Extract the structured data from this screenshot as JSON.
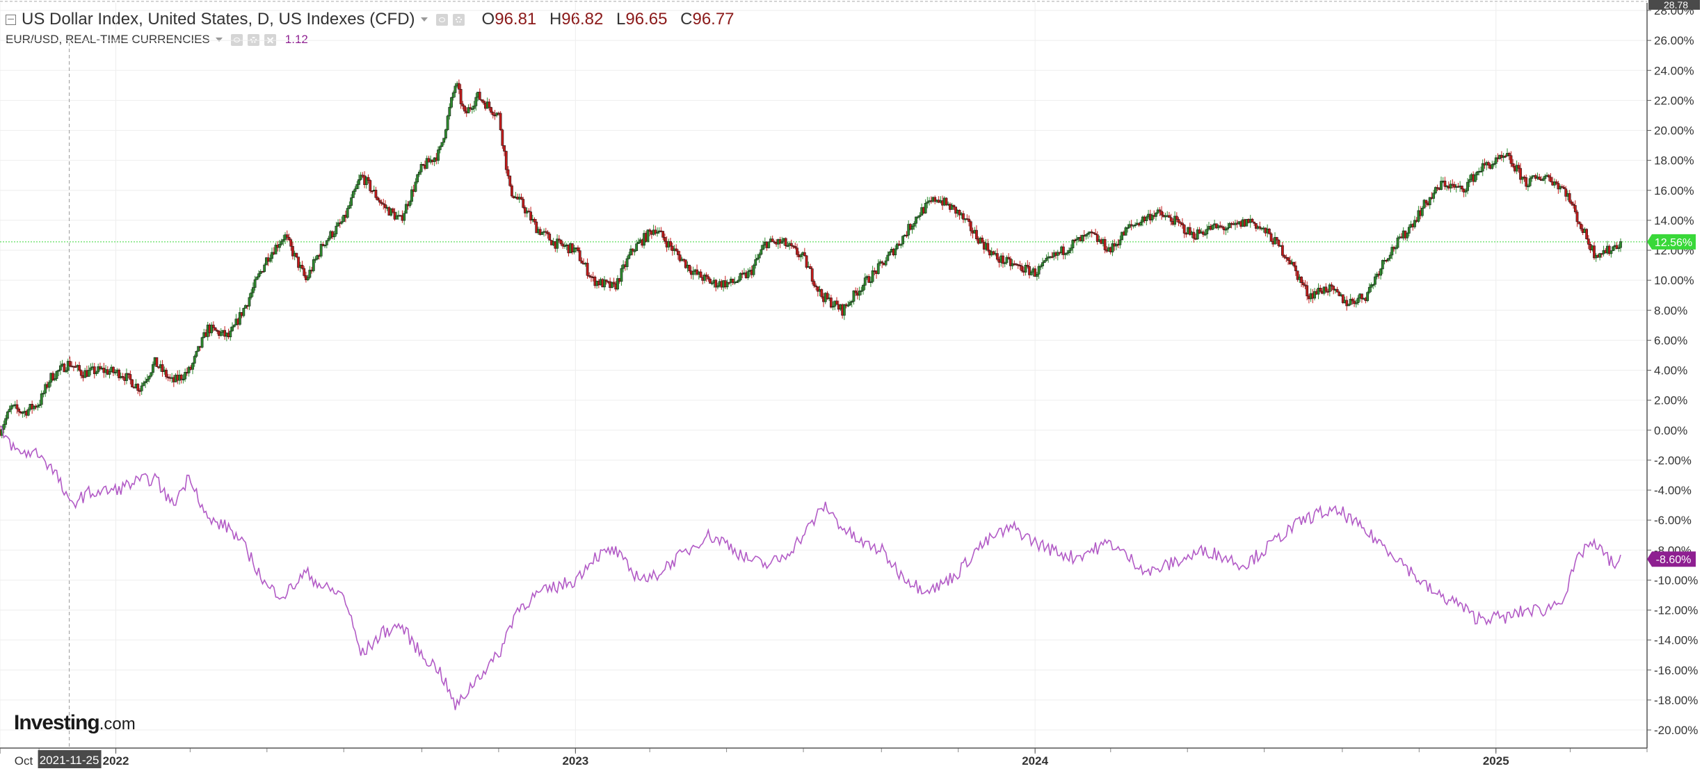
{
  "legend": {
    "main_title": "US Dollar Index, United States, D, US Indexes (CFD)",
    "open_label": "O",
    "open": "96.81",
    "high_label": "H",
    "high": "96.82",
    "low_label": "L",
    "low": "96.65",
    "close_label": "C",
    "close": "96.77",
    "compare_title": "EUR/USD, REAL-TIME CURRENCIES",
    "compare_value": "1.12"
  },
  "logo": {
    "brand": "Investing",
    "suffix": ".com"
  },
  "colors": {
    "up_candle": "#2e8b2e",
    "down_candle": "#c41a1a",
    "compare_line": "#b25bc6",
    "last_price_line": "#39d839",
    "eurusd_badge": "#8e1f91",
    "grid": "#eeeeee"
  },
  "chart_data": {
    "type": "line",
    "x_start": "2021-10-01",
    "x_end": "2025-05-01",
    "ylim": [
      -21,
      29
    ],
    "y_ticks": [
      -20,
      -18,
      -16,
      -14,
      -12,
      -10,
      -8,
      -6,
      -4,
      -2,
      0,
      2,
      4,
      6,
      8,
      10,
      12,
      14,
      16,
      18,
      20,
      22,
      24,
      26,
      28
    ],
    "y_tick_labels": [
      "-20.00%",
      "-18.00%",
      "-16.00%",
      "-14.00%",
      "-12.00%",
      "-10.00%",
      "-8.00%",
      "-6.00%",
      "-4.00%",
      "-2.00%",
      "0.00%",
      "2.00%",
      "4.00%",
      "6.00%",
      "8.00%",
      "10.00%",
      "12.00%",
      "14.00%",
      "16.00%",
      "18.00%",
      "20.00%",
      "22.00%",
      "24.00%",
      "26.00%",
      "28.00%"
    ],
    "top_value_label": "28.78",
    "x_tick_labels": [
      {
        "date": "2021-10-01",
        "label": "Oct"
      },
      {
        "date": "2022-01-01",
        "label": "2022"
      },
      {
        "date": "2023-01-01",
        "label": "2023"
      },
      {
        "date": "2024-01-01",
        "label": "2024"
      },
      {
        "date": "2025-01-01",
        "label": "2025"
      }
    ],
    "crosshair_date": "2021-11-25",
    "crosshair_label": "2021-11-25",
    "series": [
      {
        "name": "US Dollar Index",
        "style": "candlestick",
        "last_value": 12.56,
        "last_label": "12.56%",
        "points": [
          [
            "2021-10-01",
            0
          ],
          [
            "2021-10-10",
            1.5
          ],
          [
            "2021-10-20",
            1.2
          ],
          [
            "2021-11-01",
            1.8
          ],
          [
            "2021-11-10",
            3.5
          ],
          [
            "2021-11-25",
            4.5
          ],
          [
            "2021-12-05",
            3.8
          ],
          [
            "2021-12-20",
            4.0
          ],
          [
            "2022-01-05",
            3.8
          ],
          [
            "2022-01-20",
            2.8
          ],
          [
            "2022-02-01",
            4.5
          ],
          [
            "2022-02-15",
            3.2
          ],
          [
            "2022-03-01",
            4.0
          ],
          [
            "2022-03-15",
            6.8
          ],
          [
            "2022-04-01",
            6.2
          ],
          [
            "2022-04-15",
            8.5
          ],
          [
            "2022-05-01",
            11.5
          ],
          [
            "2022-05-15",
            13.0
          ],
          [
            "2022-06-01",
            10.0
          ],
          [
            "2022-06-15",
            12.5
          ],
          [
            "2022-07-01",
            14.0
          ],
          [
            "2022-07-15",
            17.0
          ],
          [
            "2022-08-01",
            15.0
          ],
          [
            "2022-08-15",
            14.0
          ],
          [
            "2022-09-01",
            17.5
          ],
          [
            "2022-09-15",
            18.5
          ],
          [
            "2022-09-28",
            23.2
          ],
          [
            "2022-10-05",
            21.0
          ],
          [
            "2022-10-15",
            22.3
          ],
          [
            "2022-11-01",
            21.0
          ],
          [
            "2022-11-10",
            16.0
          ],
          [
            "2022-11-20",
            15.0
          ],
          [
            "2022-12-01",
            13.5
          ],
          [
            "2022-12-15",
            12.5
          ],
          [
            "2023-01-01",
            12.0
          ],
          [
            "2023-01-15",
            10.0
          ],
          [
            "2023-02-01",
            9.5
          ],
          [
            "2023-02-15",
            12.0
          ],
          [
            "2023-03-05",
            13.5
          ],
          [
            "2023-03-20",
            12.0
          ],
          [
            "2023-04-05",
            10.5
          ],
          [
            "2023-04-20",
            9.8
          ],
          [
            "2023-05-05",
            9.8
          ],
          [
            "2023-05-20",
            10.5
          ],
          [
            "2023-06-01",
            12.5
          ],
          [
            "2023-06-15",
            12.5
          ],
          [
            "2023-07-01",
            11.5
          ],
          [
            "2023-07-15",
            9.0
          ],
          [
            "2023-08-01",
            8.0
          ],
          [
            "2023-08-15",
            9.5
          ],
          [
            "2023-09-01",
            11.0
          ],
          [
            "2023-09-15",
            12.5
          ],
          [
            "2023-10-01",
            14.5
          ],
          [
            "2023-10-15",
            15.5
          ],
          [
            "2023-11-01",
            14.5
          ],
          [
            "2023-11-15",
            13.0
          ],
          [
            "2023-12-01",
            11.5
          ],
          [
            "2023-12-15",
            11.0
          ],
          [
            "2024-01-01",
            10.5
          ],
          [
            "2024-01-15",
            11.5
          ],
          [
            "2024-02-01",
            12.5
          ],
          [
            "2024-02-15",
            13.0
          ],
          [
            "2024-03-01",
            12.0
          ],
          [
            "2024-03-15",
            13.5
          ],
          [
            "2024-04-05",
            14.5
          ],
          [
            "2024-04-20",
            14.0
          ],
          [
            "2024-05-05",
            13.0
          ],
          [
            "2024-05-20",
            13.5
          ],
          [
            "2024-06-05",
            13.5
          ],
          [
            "2024-06-20",
            14.0
          ],
          [
            "2024-07-05",
            13.0
          ],
          [
            "2024-07-20",
            11.5
          ],
          [
            "2024-08-05",
            9.0
          ],
          [
            "2024-08-20",
            9.5
          ],
          [
            "2024-09-05",
            8.5
          ],
          [
            "2024-09-20",
            9.0
          ],
          [
            "2024-10-05",
            11.5
          ],
          [
            "2024-10-20",
            13.0
          ],
          [
            "2024-11-05",
            15.0
          ],
          [
            "2024-11-20",
            16.5
          ],
          [
            "2024-12-05",
            16.0
          ],
          [
            "2024-12-20",
            17.5
          ],
          [
            "2025-01-10",
            18.2
          ],
          [
            "2025-01-25",
            16.5
          ],
          [
            "2025-02-10",
            17.0
          ],
          [
            "2025-02-25",
            16.0
          ],
          [
            "2025-03-10",
            13.5
          ],
          [
            "2025-03-20",
            11.8
          ],
          [
            "2025-04-01",
            12.0
          ],
          [
            "2025-04-10",
            12.56
          ]
        ]
      },
      {
        "name": "EUR/USD",
        "style": "line",
        "last_value": -8.6,
        "last_label": "-8.60%",
        "points": [
          [
            "2021-10-01",
            0
          ],
          [
            "2021-10-15",
            -1.5
          ],
          [
            "2021-11-01",
            -1.5
          ],
          [
            "2021-11-15",
            -3.0
          ],
          [
            "2021-11-25",
            -5.0
          ],
          [
            "2021-12-10",
            -4.2
          ],
          [
            "2022-01-01",
            -4.0
          ],
          [
            "2022-01-15",
            -3.5
          ],
          [
            "2022-02-01",
            -3.2
          ],
          [
            "2022-02-15",
            -5.0
          ],
          [
            "2022-03-01",
            -3.0
          ],
          [
            "2022-03-15",
            -6.0
          ],
          [
            "2022-04-01",
            -6.5
          ],
          [
            "2022-04-15",
            -8.0
          ],
          [
            "2022-05-01",
            -10.5
          ],
          [
            "2022-05-15",
            -11.0
          ],
          [
            "2022-06-01",
            -9.5
          ],
          [
            "2022-06-15",
            -10.5
          ],
          [
            "2022-07-01",
            -11.0
          ],
          [
            "2022-07-15",
            -15.0
          ],
          [
            "2022-08-01",
            -13.5
          ],
          [
            "2022-08-15",
            -13.0
          ],
          [
            "2022-09-01",
            -15.0
          ],
          [
            "2022-09-15",
            -16.0
          ],
          [
            "2022-09-28",
            -18.5
          ],
          [
            "2022-10-15",
            -16.5
          ],
          [
            "2022-11-01",
            -15.0
          ],
          [
            "2022-11-15",
            -12.0
          ],
          [
            "2022-12-01",
            -11.0
          ],
          [
            "2022-12-15",
            -10.5
          ],
          [
            "2023-01-01",
            -10.0
          ],
          [
            "2023-01-15",
            -8.5
          ],
          [
            "2023-02-01",
            -8.0
          ],
          [
            "2023-02-15",
            -9.5
          ],
          [
            "2023-03-01",
            -10.0
          ],
          [
            "2023-03-15",
            -9.0
          ],
          [
            "2023-04-01",
            -8.0
          ],
          [
            "2023-04-15",
            -7.0
          ],
          [
            "2023-05-01",
            -7.5
          ],
          [
            "2023-05-15",
            -8.5
          ],
          [
            "2023-06-01",
            -9.0
          ],
          [
            "2023-06-15",
            -8.5
          ],
          [
            "2023-07-01",
            -7.0
          ],
          [
            "2023-07-18",
            -5.0
          ],
          [
            "2023-08-01",
            -6.5
          ],
          [
            "2023-08-15",
            -7.5
          ],
          [
            "2023-09-01",
            -8.0
          ],
          [
            "2023-09-15",
            -9.5
          ],
          [
            "2023-10-01",
            -10.5
          ],
          [
            "2023-10-15",
            -10.5
          ],
          [
            "2023-11-01",
            -9.5
          ],
          [
            "2023-11-15",
            -8.0
          ],
          [
            "2023-12-01",
            -7.0
          ],
          [
            "2023-12-15",
            -6.5
          ],
          [
            "2024-01-01",
            -7.5
          ],
          [
            "2024-01-15",
            -8.0
          ],
          [
            "2024-02-01",
            -8.5
          ],
          [
            "2024-02-15",
            -8.0
          ],
          [
            "2024-03-01",
            -7.5
          ],
          [
            "2024-03-15",
            -8.5
          ],
          [
            "2024-04-01",
            -9.5
          ],
          [
            "2024-04-15",
            -9.0
          ],
          [
            "2024-05-01",
            -8.5
          ],
          [
            "2024-05-15",
            -8.0
          ],
          [
            "2024-06-01",
            -8.5
          ],
          [
            "2024-06-15",
            -9.0
          ],
          [
            "2024-07-01",
            -8.0
          ],
          [
            "2024-07-15",
            -7.0
          ],
          [
            "2024-08-01",
            -6.0
          ],
          [
            "2024-08-15",
            -5.5
          ],
          [
            "2024-09-01",
            -5.5
          ],
          [
            "2024-09-15",
            -6.5
          ],
          [
            "2024-10-01",
            -7.5
          ],
          [
            "2024-10-15",
            -8.5
          ],
          [
            "2024-11-01",
            -10.0
          ],
          [
            "2024-11-15",
            -11.0
          ],
          [
            "2024-12-01",
            -11.5
          ],
          [
            "2024-12-15",
            -12.5
          ],
          [
            "2025-01-10",
            -12.5
          ],
          [
            "2025-01-25",
            -12.0
          ],
          [
            "2025-02-10",
            -12.0
          ],
          [
            "2025-02-25",
            -11.0
          ],
          [
            "2025-03-05",
            -9.0
          ],
          [
            "2025-03-15",
            -7.5
          ],
          [
            "2025-03-25",
            -8.0
          ],
          [
            "2025-04-05",
            -9.0
          ],
          [
            "2025-04-10",
            -8.6
          ]
        ]
      }
    ]
  }
}
